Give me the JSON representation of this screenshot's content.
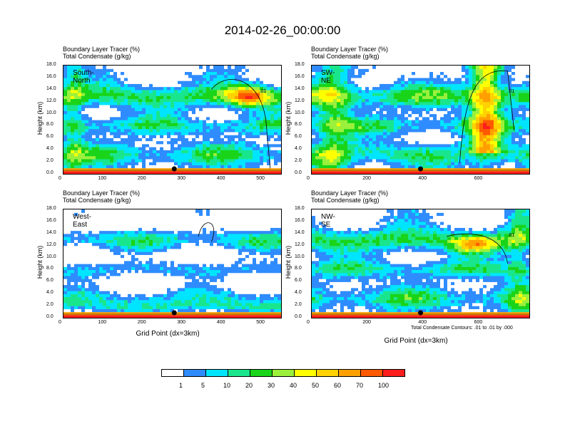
{
  "title": "2014-02-26_00:00:00",
  "panel_label1": "Boundary Layer Tracer   (%)",
  "panel_label2": "Total Condensate   (g/kg)",
  "ylabel": "Height (km)",
  "xlabel": "Grid Point (dx=3km)",
  "contour_note": "Total Condensate Contours: .01 to .01 by .000",
  "colors": [
    "#ffffff",
    "#2f8cff",
    "#00e5ff",
    "#19e68c",
    "#19d419",
    "#9bf03c",
    "#ffff00",
    "#ffd200",
    "#ffa000",
    "#ff5a00",
    "#ff1e1e"
  ],
  "colorbar_labels": [
    "1",
    "5",
    "10",
    "20",
    "30",
    "40",
    "50",
    "60",
    "70",
    "100"
  ],
  "chart_data": [
    {
      "type": "heatmap",
      "direction": "South-North",
      "xlim": [
        0,
        550
      ],
      "xticks": [
        "0",
        "100",
        "200",
        "300",
        "400",
        "500"
      ],
      "ylim": [
        0,
        18
      ],
      "yticks": [
        "0.0",
        "2.0",
        "4.0",
        "6.0",
        "8.0",
        "10.0",
        "12.0",
        "14.0",
        "16.0",
        "18.0"
      ],
      "contour_label": ".01",
      "marker_x": 280
    },
    {
      "type": "heatmap",
      "direction": "SW-NE",
      "xlim": [
        0,
        780
      ],
      "xticks": [
        "0",
        "200",
        "400",
        "600"
      ],
      "ylim": [
        0,
        18
      ],
      "yticks": [
        "0.0",
        "2.0",
        "4.0",
        "6.0",
        "8.0",
        "10.0",
        "12.0",
        "14.0",
        "16.0",
        "18.0"
      ],
      "contour_label": ".01",
      "marker_x": 390
    },
    {
      "type": "heatmap",
      "direction": "West-East",
      "xlim": [
        0,
        550
      ],
      "xticks": [
        "0",
        "100",
        "200",
        "300",
        "400",
        "500"
      ],
      "ylim": [
        0,
        18
      ],
      "yticks": [
        "0.0",
        "2.0",
        "4.0",
        "6.0",
        "8.0",
        "10.0",
        "12.0",
        "14.0",
        "16.0",
        "18.0"
      ],
      "contour_label": "",
      "marker_x": 280
    },
    {
      "type": "heatmap",
      "direction": "NW-SE",
      "xlim": [
        0,
        780
      ],
      "xticks": [
        "0",
        "200",
        "400",
        "600"
      ],
      "ylim": [
        0,
        18
      ],
      "yticks": [
        "0.0",
        "2.0",
        "4.0",
        "6.0",
        "8.0",
        "10.0",
        "12.0",
        "14.0",
        "16.0",
        "18.0"
      ],
      "contour_label": ".01",
      "marker_x": 390
    }
  ]
}
